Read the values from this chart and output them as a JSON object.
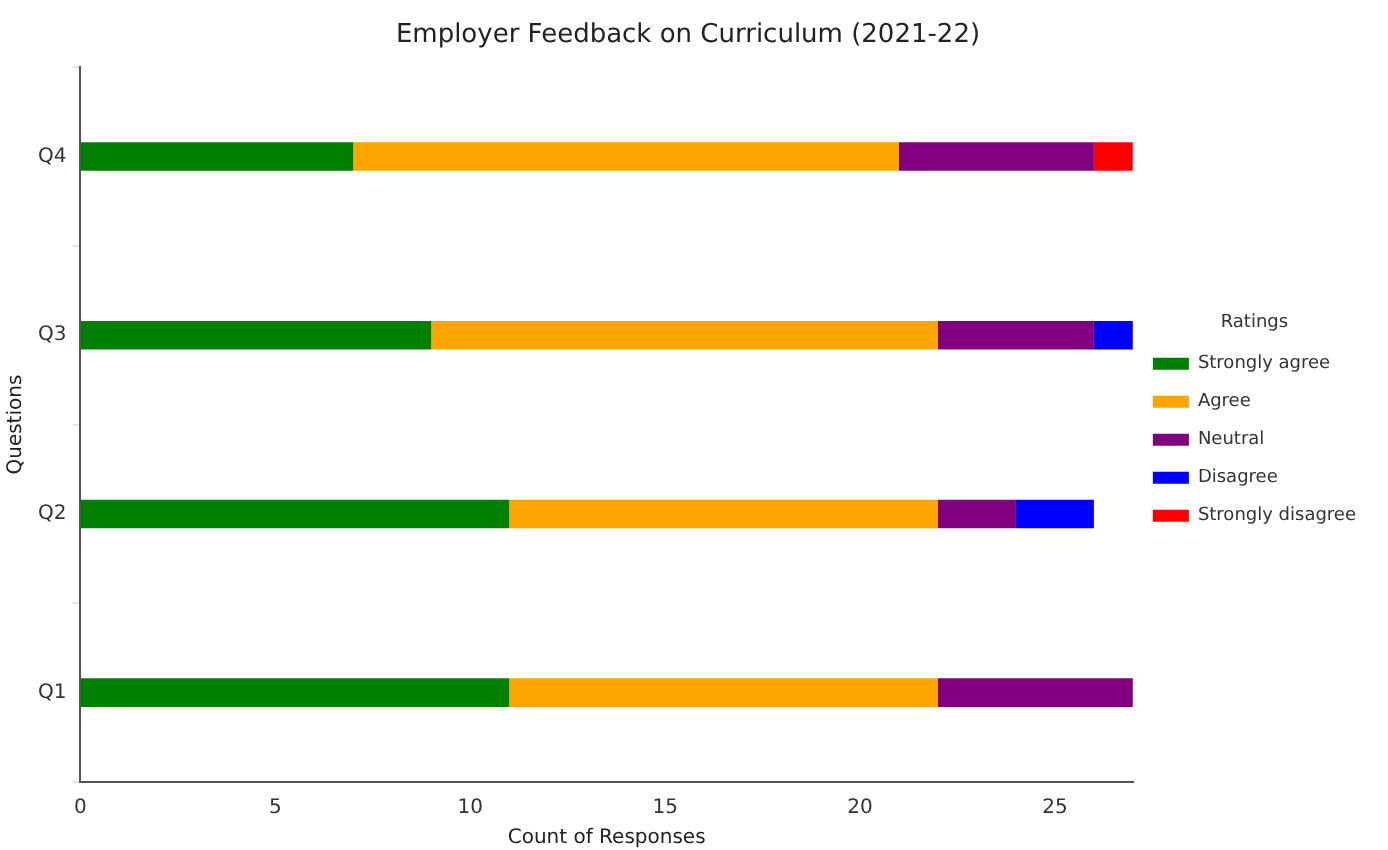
{
  "chart_data": {
    "type": "bar",
    "orientation": "horizontal",
    "stacked": true,
    "title": "Employer Feedback on Curriculum (2021-22)",
    "xlabel": "Count of Responses",
    "ylabel": "Questions",
    "legend_title": "Ratings",
    "legend": "right",
    "grid": false,
    "categories": [
      "Q4",
      "Q3",
      "Q2",
      "Q1"
    ],
    "xlim": [
      0,
      27
    ],
    "xticks": [
      0,
      5,
      10,
      15,
      20,
      25
    ],
    "series": [
      {
        "name": "Strongly agree",
        "color": "#008000",
        "values": [
          7,
          9,
          11,
          11
        ]
      },
      {
        "name": "Agree",
        "color": "#ffa500",
        "values": [
          14,
          13,
          11,
          11
        ]
      },
      {
        "name": "Neutral",
        "color": "#800080",
        "values": [
          5,
          4,
          2,
          5
        ]
      },
      {
        "name": "Disagree",
        "color": "#0000ff",
        "values": [
          0,
          1,
          2,
          0
        ]
      },
      {
        "name": "Strongly disagree",
        "color": "#ff0000",
        "values": [
          1,
          0,
          0,
          0
        ]
      }
    ]
  }
}
